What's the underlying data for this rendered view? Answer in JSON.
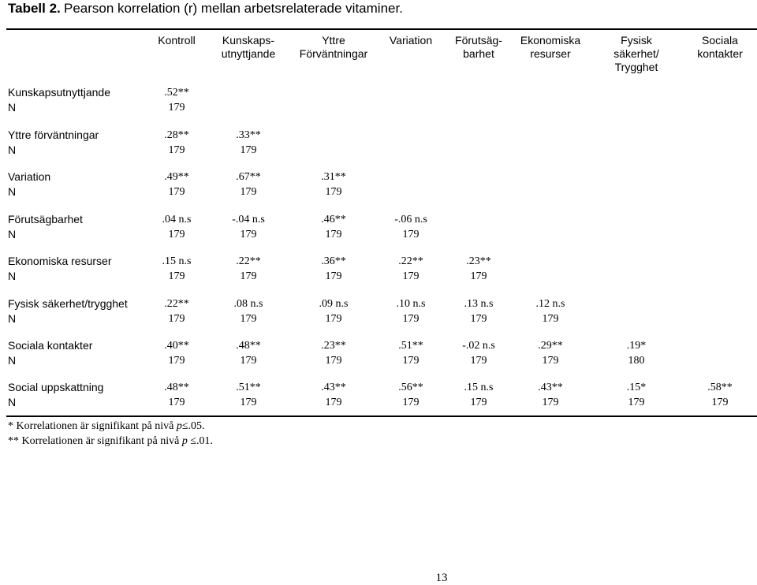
{
  "title": {
    "label": "Tabell 2.",
    "text": "Pearson korrelation (r) mellan arbetsrelaterade vitaminer."
  },
  "columns": [
    [
      "Kontroll"
    ],
    [
      "Kunskaps-",
      "utnyttjande"
    ],
    [
      "Yttre",
      "Förväntningar"
    ],
    [
      "Variation"
    ],
    [
      "Förutsäg-",
      "barhet"
    ],
    [
      "Ekonomiska",
      "resurser"
    ],
    [
      "Fysisk",
      "säkerhet/",
      "Trygghet"
    ],
    [
      "Sociala",
      "kontakter"
    ]
  ],
  "rows": [
    {
      "label": "Kunskapsutnyttjande",
      "values": [
        ".52**"
      ],
      "n": [
        "179"
      ]
    },
    {
      "label": "Yttre förväntningar",
      "values": [
        ".28**",
        ".33**"
      ],
      "n": [
        "179",
        "179"
      ]
    },
    {
      "label": "Variation",
      "values": [
        ".49**",
        ".67**",
        ".31**"
      ],
      "n": [
        "179",
        "179",
        "179"
      ]
    },
    {
      "label": "Förutsägbarhet",
      "values": [
        ".04 n.s",
        "-.04 n.s",
        ".46**",
        "-.06 n.s"
      ],
      "n": [
        "179",
        "179",
        "179",
        "179"
      ]
    },
    {
      "label": "Ekonomiska resurser",
      "values": [
        ".15 n.s",
        ".22**",
        ".36**",
        ".22**",
        ".23**"
      ],
      "n": [
        "179",
        "179",
        "179",
        "179",
        "179"
      ]
    },
    {
      "label": "Fysisk säkerhet/trygghet",
      "values": [
        ".22**",
        ".08 n.s",
        ".09 n.s",
        ".10 n.s",
        ".13 n.s",
        ".12 n.s"
      ],
      "n": [
        "179",
        "179",
        "179",
        "179",
        "179",
        "179"
      ]
    },
    {
      "label": "Sociala kontakter",
      "values": [
        ".40**",
        ".48**",
        ".23**",
        ".51**",
        "-.02 n.s",
        ".29**",
        ".19*"
      ],
      "n": [
        "179",
        "179",
        "179",
        "179",
        "179",
        "179",
        "180"
      ]
    },
    {
      "label": "Social uppskattning",
      "values": [
        ".48**",
        ".51**",
        ".43**",
        ".56**",
        ".15 n.s",
        ".43**",
        ".15*",
        ".58**"
      ],
      "n": [
        "179",
        "179",
        "179",
        "179",
        "179",
        "179",
        "179",
        "179"
      ]
    }
  ],
  "n_label": "N",
  "notes": [
    {
      "prefix": "* Korrelationen är signifikant på nivå ",
      "p": "p",
      "suffix": "≤.05."
    },
    {
      "prefix": "** Korrelationen är signifikant på nivå ",
      "p": "p",
      "suffix": " ≤.01."
    }
  ],
  "page_number": "13"
}
